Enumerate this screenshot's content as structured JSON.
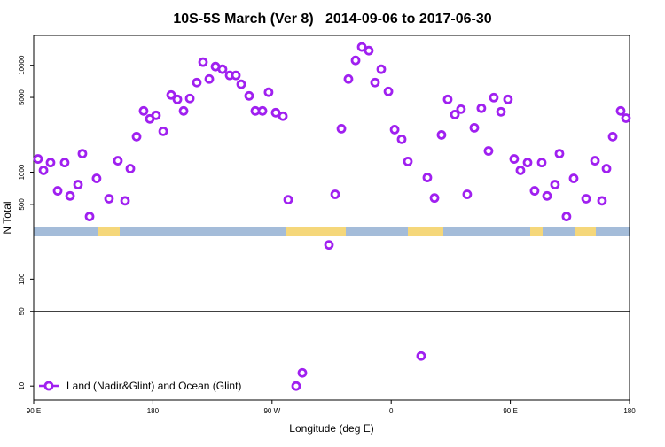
{
  "chart_data": {
    "type": "scatter",
    "title": "10S-5S March (Ver 8)   2014-09-06 to 2017-06-30",
    "x_label": "Longitude (deg E)",
    "y_label": "N Total",
    "log_y": true,
    "legend": "bottom-left",
    "x": [
      93.3,
      97.4,
      102.7,
      108.1,
      113.4,
      117.5,
      123.5,
      126.8,
      132.2,
      137.5,
      146.9,
      153.6,
      159,
      163,
      167.7,
      173,
      177.7,
      182.4,
      187.8,
      193.8,
      198.5,
      203.2,
      207.9,
      213.2,
      217.9,
      222.6,
      227.3,
      232.6,
      238,
      242.7,
      246.7,
      252.7,
      257.4,
      262.8,
      267.4,
      272.8,
      278.2,
      282.2,
      288.2,
      292.9,
      313,
      317.7,
      322.4,
      327.7,
      333.1,
      337.8,
      343.1,
      347.8,
      352.5,
      357.9,
      362.6,
      367.9,
      372.6,
      382.6,
      387.3,
      392.7,
      398,
      402.7,
      408.1,
      412.7,
      417.4,
      422.8,
      428.1,
      433.5,
      437.5,
      442.9,
      448.2,
      452.9,
      457.6,
      463,
      468.3,
      473.7,
      477.7,
      483.7,
      487.1,
      492.4,
      497.8,
      507.2,
      513.9,
      519.2,
      522.6,
      527.3,
      533.3,
      537.3
    ],
    "series": [
      {
        "name": "Land (Nadir&Glint) and Ocean (Glint)",
        "color": "#a020f0",
        "values": [
          1330,
          1040,
          1230,
          670,
          1230,
          600,
          765,
          1490,
          385,
          875,
          565,
          1280,
          540,
          1080,
          2150,
          3740,
          3150,
          3400,
          2410,
          5270,
          4790,
          3740,
          4890,
          6890,
          10700,
          7430,
          9720,
          9180,
          8040,
          8040,
          6640,
          5170,
          3740,
          3740,
          5590,
          3600,
          3340,
          553,
          10,
          13.3,
          209,
          621,
          2550,
          7430,
          11100,
          14800,
          13700,
          6890,
          9180,
          5690,
          2500,
          2030,
          1260,
          19.1,
          891,
          574,
          2230,
          4790,
          3460,
          3880,
          621,
          2600,
          3960,
          1580,
          4980,
          3670,
          4790,
          1330,
          1040,
          1230,
          670,
          1230,
          600,
          765,
          1490,
          385,
          875,
          565,
          1280,
          540,
          1080,
          2150,
          3740,
          3200
        ]
      }
    ],
    "xlim": [
      90,
      540
    ],
    "ylim": [
      7.4,
      19000
    ],
    "xticks": [
      {
        "value": 90,
        "label": "90 E"
      },
      180,
      {
        "value": 270,
        "label": "90 W"
      },
      {
        "value": 360,
        "label": "0"
      },
      {
        "value": 450,
        "label": "90 E"
      },
      {
        "value": 540,
        "label": "180"
      }
    ],
    "yticks": [
      10,
      50,
      100,
      500,
      1000,
      5000,
      10000
    ],
    "hlines": [
      50
    ]
  }
}
